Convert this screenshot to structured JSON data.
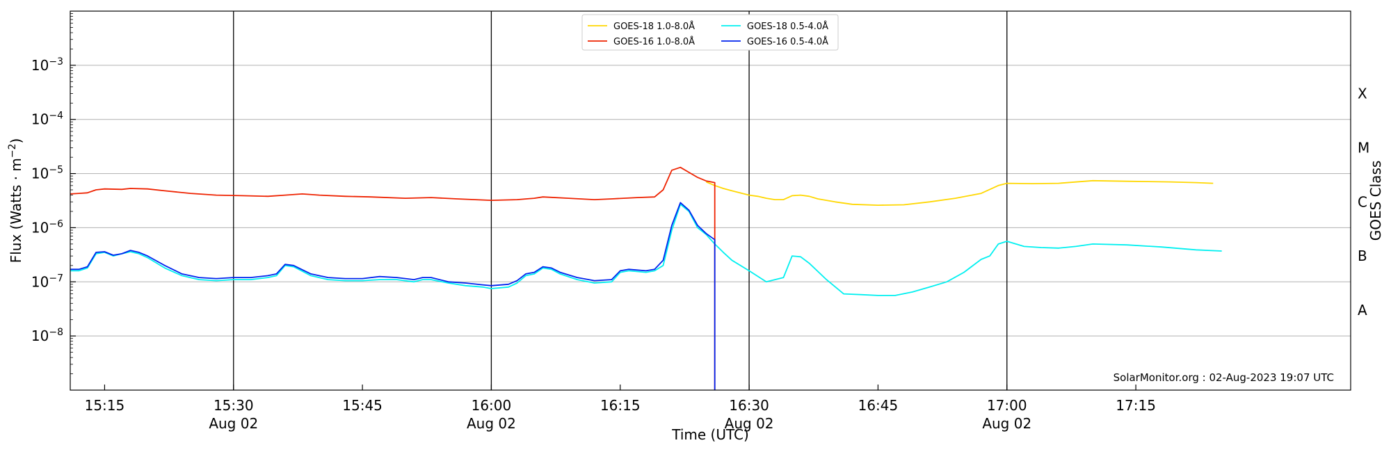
{
  "chart_data": {
    "type": "line",
    "xlabel": "Time (UTC)",
    "ylabel_main": "Flux (Watts · m",
    "ylabel_sup": "−2",
    "ylabel_close": ")",
    "right_label": "GOES Class",
    "credit": "SolarMonitor.org : 02-Aug-2023 19:07 UTC",
    "y_scale": "log",
    "ylim": [
      1e-09,
      0.01
    ],
    "xlim": [
      "15:11",
      "17:40"
    ],
    "grid": "horizontal",
    "legend_position": "top-center",
    "y_ticks": [
      {
        "value": 1e-08,
        "base": "10",
        "exp": "−8"
      },
      {
        "value": 1e-07,
        "base": "10",
        "exp": "−7"
      },
      {
        "value": 1e-06,
        "base": "10",
        "exp": "−6"
      },
      {
        "value": 1e-05,
        "base": "10",
        "exp": "−5"
      },
      {
        "value": 0.0001,
        "base": "10",
        "exp": "−4"
      },
      {
        "value": 0.001,
        "base": "10",
        "exp": "−3"
      }
    ],
    "x_ticks": [
      {
        "time": "15:15",
        "label": "15:15",
        "date": ""
      },
      {
        "time": "15:30",
        "label": "15:30",
        "date": "Aug 02"
      },
      {
        "time": "15:45",
        "label": "15:45",
        "date": ""
      },
      {
        "time": "16:00",
        "label": "16:00",
        "date": "Aug 02"
      },
      {
        "time": "16:15",
        "label": "16:15",
        "date": ""
      },
      {
        "time": "16:30",
        "label": "16:30",
        "date": "Aug 02"
      },
      {
        "time": "16:45",
        "label": "16:45",
        "date": ""
      },
      {
        "time": "17:00",
        "label": "17:00",
        "date": "Aug 02"
      },
      {
        "time": "17:15",
        "label": "17:15",
        "date": ""
      }
    ],
    "vlines": [
      "15:30",
      "16:00",
      "16:30",
      "17:00"
    ],
    "class_labels": [
      {
        "label": "A",
        "value": 3e-08
      },
      {
        "label": "B",
        "value": 3e-07
      },
      {
        "label": "C",
        "value": 3e-06
      },
      {
        "label": "M",
        "value": 3e-05
      },
      {
        "label": "X",
        "value": 0.0003
      }
    ],
    "series": [
      {
        "name": "GOES-18 1.0-8.0Å",
        "color": "#ffd700",
        "points": [
          [
            "16:25",
            7e-06
          ],
          [
            "16:26",
            6e-06
          ],
          [
            "16:27",
            5.3e-06
          ],
          [
            "16:28",
            4.8e-06
          ],
          [
            "16:30",
            4e-06
          ],
          [
            "16:31",
            3.8e-06
          ],
          [
            "16:32",
            3.5e-06
          ],
          [
            "16:33",
            3.3e-06
          ],
          [
            "16:34",
            3.3e-06
          ],
          [
            "16:35",
            3.9e-06
          ],
          [
            "16:36",
            4e-06
          ],
          [
            "16:37",
            3.8e-06
          ],
          [
            "16:38",
            3.4e-06
          ],
          [
            "16:40",
            3e-06
          ],
          [
            "16:42",
            2.7e-06
          ],
          [
            "16:45",
            2.6e-06
          ],
          [
            "16:48",
            2.65e-06
          ],
          [
            "16:51",
            3e-06
          ],
          [
            "16:54",
            3.5e-06
          ],
          [
            "16:57",
            4.3e-06
          ],
          [
            "16:59",
            6e-06
          ],
          [
            "17:00",
            6.6e-06
          ],
          [
            "17:03",
            6.5e-06
          ],
          [
            "17:06",
            6.6e-06
          ],
          [
            "17:10",
            7.4e-06
          ],
          [
            "17:14",
            7.2e-06
          ],
          [
            "17:19",
            7e-06
          ],
          [
            "17:22",
            6.8e-06
          ],
          [
            "17:24",
            6.6e-06
          ]
        ]
      },
      {
        "name": "GOES-18 0.5-4.0Å",
        "color": "#00f0f0",
        "points": [
          [
            "15:11",
            1.6e-07
          ],
          [
            "15:12",
            1.6e-07
          ],
          [
            "15:13",
            1.8e-07
          ],
          [
            "15:14",
            3.3e-07
          ],
          [
            "15:15",
            3.5e-07
          ],
          [
            "15:16",
            3e-07
          ],
          [
            "15:17",
            3.3e-07
          ],
          [
            "15:18",
            3.6e-07
          ],
          [
            "15:19",
            3.3e-07
          ],
          [
            "15:20",
            2.8e-07
          ],
          [
            "15:22",
            1.8e-07
          ],
          [
            "15:24",
            1.3e-07
          ],
          [
            "15:26",
            1.1e-07
          ],
          [
            "15:28",
            1.05e-07
          ],
          [
            "15:30",
            1.1e-07
          ],
          [
            "15:32",
            1.1e-07
          ],
          [
            "15:34",
            1.2e-07
          ],
          [
            "15:35",
            1.3e-07
          ],
          [
            "15:36",
            2e-07
          ],
          [
            "15:37",
            1.9e-07
          ],
          [
            "15:39",
            1.3e-07
          ],
          [
            "15:41",
            1.1e-07
          ],
          [
            "15:43",
            1.05e-07
          ],
          [
            "15:45",
            1.05e-07
          ],
          [
            "15:47",
            1.1e-07
          ],
          [
            "15:49",
            1.1e-07
          ],
          [
            "15:51",
            1e-07
          ],
          [
            "15:52",
            1.1e-07
          ],
          [
            "15:53",
            1.1e-07
          ],
          [
            "15:55",
            9.5e-08
          ],
          [
            "15:57",
            8.5e-08
          ],
          [
            "15:59",
            8e-08
          ],
          [
            "16:00",
            7.5e-08
          ],
          [
            "16:02",
            8e-08
          ],
          [
            "16:03",
            9.5e-08
          ],
          [
            "16:04",
            1.3e-07
          ],
          [
            "16:05",
            1.4e-07
          ],
          [
            "16:06",
            1.8e-07
          ],
          [
            "16:07",
            1.7e-07
          ],
          [
            "16:08",
            1.4e-07
          ],
          [
            "16:10",
            1.1e-07
          ],
          [
            "16:12",
            9.5e-08
          ],
          [
            "16:14",
            1e-07
          ],
          [
            "16:15",
            1.5e-07
          ],
          [
            "16:16",
            1.6e-07
          ],
          [
            "16:18",
            1.5e-07
          ],
          [
            "16:19",
            1.6e-07
          ],
          [
            "16:20",
            2e-07
          ],
          [
            "16:21",
            9e-07
          ],
          [
            "16:22",
            2.7e-06
          ],
          [
            "16:23",
            2e-06
          ],
          [
            "16:24",
            1e-06
          ],
          [
            "16:25",
            7.5e-07
          ],
          [
            "16:26",
            5e-07
          ],
          [
            "16:27",
            3.5e-07
          ],
          [
            "16:28",
            2.5e-07
          ],
          [
            "16:30",
            1.6e-07
          ],
          [
            "16:32",
            1e-07
          ],
          [
            "16:34",
            1.2e-07
          ],
          [
            "16:35",
            3e-07
          ],
          [
            "16:36",
            2.9e-07
          ],
          [
            "16:37",
            2.2e-07
          ],
          [
            "16:39",
            1.1e-07
          ],
          [
            "16:41",
            6e-08
          ],
          [
            "16:43",
            5.8e-08
          ],
          [
            "16:45",
            5.6e-08
          ],
          [
            "16:47",
            5.6e-08
          ],
          [
            "16:49",
            6.5e-08
          ],
          [
            "16:51",
            8e-08
          ],
          [
            "16:53",
            1e-07
          ],
          [
            "16:55",
            1.5e-07
          ],
          [
            "16:57",
            2.6e-07
          ],
          [
            "16:58",
            3e-07
          ],
          [
            "16:59",
            5e-07
          ],
          [
            "17:00",
            5.6e-07
          ],
          [
            "17:02",
            4.5e-07
          ],
          [
            "17:04",
            4.3e-07
          ],
          [
            "17:06",
            4.2e-07
          ],
          [
            "17:08",
            4.5e-07
          ],
          [
            "17:10",
            5e-07
          ],
          [
            "17:14",
            4.8e-07
          ],
          [
            "17:18",
            4.4e-07
          ],
          [
            "17:22",
            3.9e-07
          ],
          [
            "17:25",
            3.7e-07
          ]
        ]
      },
      {
        "name": "GOES-16 1.0-8.0Å",
        "color": "#ee2200",
        "points": [
          [
            "15:11",
            4.2e-06
          ],
          [
            "15:12",
            4.3e-06
          ],
          [
            "15:13",
            4.4e-06
          ],
          [
            "15:14",
            5e-06
          ],
          [
            "15:15",
            5.2e-06
          ],
          [
            "15:17",
            5.1e-06
          ],
          [
            "15:18",
            5.3e-06
          ],
          [
            "15:20",
            5.2e-06
          ],
          [
            "15:22",
            4.8e-06
          ],
          [
            "15:25",
            4.3e-06
          ],
          [
            "15:28",
            4e-06
          ],
          [
            "15:31",
            3.9e-06
          ],
          [
            "15:34",
            3.8e-06
          ],
          [
            "15:36",
            4e-06
          ],
          [
            "15:38",
            4.2e-06
          ],
          [
            "15:40",
            4e-06
          ],
          [
            "15:43",
            3.8e-06
          ],
          [
            "15:46",
            3.7e-06
          ],
          [
            "15:50",
            3.5e-06
          ],
          [
            "15:53",
            3.6e-06
          ],
          [
            "15:56",
            3.4e-06
          ],
          [
            "16:00",
            3.2e-06
          ],
          [
            "16:03",
            3.3e-06
          ],
          [
            "16:05",
            3.5e-06
          ],
          [
            "16:06",
            3.7e-06
          ],
          [
            "16:09",
            3.5e-06
          ],
          [
            "16:12",
            3.3e-06
          ],
          [
            "16:14",
            3.4e-06
          ],
          [
            "16:17",
            3.6e-06
          ],
          [
            "16:19",
            3.7e-06
          ],
          [
            "16:20",
            5e-06
          ],
          [
            "16:21",
            1.15e-05
          ],
          [
            "16:22",
            1.3e-05
          ],
          [
            "16:23",
            1.05e-05
          ],
          [
            "16:24",
            8.5e-06
          ],
          [
            "16:25",
            7.3e-06
          ],
          [
            "16:26",
            6.8e-06
          ],
          [
            "16:26",
            1e-09
          ]
        ]
      },
      {
        "name": "GOES-16 0.5-4.0Å",
        "color": "#0022ee",
        "points": [
          [
            "15:11",
            1.7e-07
          ],
          [
            "15:12",
            1.7e-07
          ],
          [
            "15:13",
            1.9e-07
          ],
          [
            "15:14",
            3.5e-07
          ],
          [
            "15:15",
            3.6e-07
          ],
          [
            "15:16",
            3.1e-07
          ],
          [
            "15:17",
            3.3e-07
          ],
          [
            "15:18",
            3.8e-07
          ],
          [
            "15:19",
            3.5e-07
          ],
          [
            "15:20",
            3e-07
          ],
          [
            "15:22",
            2e-07
          ],
          [
            "15:24",
            1.4e-07
          ],
          [
            "15:26",
            1.2e-07
          ],
          [
            "15:28",
            1.15e-07
          ],
          [
            "15:30",
            1.2e-07
          ],
          [
            "15:32",
            1.2e-07
          ],
          [
            "15:34",
            1.3e-07
          ],
          [
            "15:35",
            1.4e-07
          ],
          [
            "15:36",
            2.1e-07
          ],
          [
            "15:37",
            2e-07
          ],
          [
            "15:39",
            1.4e-07
          ],
          [
            "15:41",
            1.2e-07
          ],
          [
            "15:43",
            1.15e-07
          ],
          [
            "15:45",
            1.15e-07
          ],
          [
            "15:47",
            1.25e-07
          ],
          [
            "15:49",
            1.2e-07
          ],
          [
            "15:51",
            1.1e-07
          ],
          [
            "15:52",
            1.2e-07
          ],
          [
            "15:53",
            1.2e-07
          ],
          [
            "15:55",
            1e-07
          ],
          [
            "15:57",
            9.5e-08
          ],
          [
            "15:59",
            8.8e-08
          ],
          [
            "16:00",
            8.5e-08
          ],
          [
            "16:02",
            9e-08
          ],
          [
            "16:03",
            1.05e-07
          ],
          [
            "16:04",
            1.4e-07
          ],
          [
            "16:05",
            1.5e-07
          ],
          [
            "16:06",
            1.9e-07
          ],
          [
            "16:07",
            1.8e-07
          ],
          [
            "16:08",
            1.5e-07
          ],
          [
            "16:10",
            1.2e-07
          ],
          [
            "16:12",
            1.05e-07
          ],
          [
            "16:14",
            1.1e-07
          ],
          [
            "16:15",
            1.6e-07
          ],
          [
            "16:16",
            1.7e-07
          ],
          [
            "16:18",
            1.6e-07
          ],
          [
            "16:19",
            1.7e-07
          ],
          [
            "16:20",
            2.5e-07
          ],
          [
            "16:21",
            1.1e-06
          ],
          [
            "16:22",
            2.9e-06
          ],
          [
            "16:23",
            2.1e-06
          ],
          [
            "16:24",
            1.1e-06
          ],
          [
            "16:25",
            7.8e-07
          ],
          [
            "16:26",
            6e-07
          ],
          [
            "16:26",
            1e-09
          ]
        ]
      }
    ],
    "legend_order": [
      0,
      1,
      2,
      3
    ]
  }
}
